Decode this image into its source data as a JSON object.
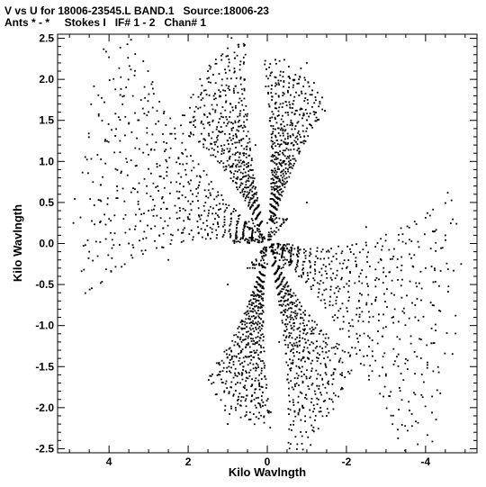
{
  "chart_data": {
    "type": "scatter",
    "title": "V vs U for 18006-23545.L BAND.1   Source:18006-23",
    "subtitle": "Ants * - *     Stokes I   IF# 1 - 2   Chan# 1",
    "xlabel": "Kilo Wavlngth",
    "ylabel": "Kilo Wavlngth",
    "xlim": [
      5.3,
      -5.3
    ],
    "ylim": [
      -2.55,
      2.55
    ],
    "x_ticks": [
      4,
      2,
      0,
      -2,
      -4
    ],
    "x_tick_labels": [
      "4",
      "2",
      "0",
      "-2",
      "-4"
    ],
    "y_ticks": [
      2.5,
      2.0,
      1.5,
      1.0,
      0.5,
      0.0,
      -0.5,
      -1.0,
      -1.5,
      -2.0,
      -2.5
    ],
    "y_tick_labels": [
      "2.5",
      "2.0",
      "1.5",
      "1.0",
      "0.5",
      "0.0",
      "-0.5",
      "-1.0",
      "-1.5",
      "-2.0",
      "-2.5"
    ],
    "grid": false,
    "marker_color": "#000000",
    "pattern": "six-armed snowflake of (u, v) points symmetric about the origin; arm axis angles 15, 55, 110, 195, 235, 290 degrees",
    "arms": [
      {
        "axis_angle_deg": 15,
        "radius_min": 0.4,
        "radius_max": 4.9
      },
      {
        "axis_angle_deg": 55,
        "radius_min": 0.3,
        "radius_max": 2.7
      },
      {
        "axis_angle_deg": 110,
        "radius_min": 0.3,
        "radius_max": 2.3
      },
      {
        "axis_angle_deg": 195,
        "radius_min": 0.4,
        "radius_max": 4.9
      },
      {
        "axis_angle_deg": 235,
        "radius_min": 0.3,
        "radius_max": 2.7
      },
      {
        "axis_angle_deg": 290,
        "radius_min": 0.3,
        "radius_max": 2.3
      }
    ],
    "series": [
      {
        "name": "",
        "points": [
          [
            0.3,
            0.3
          ],
          [
            0.5,
            0.2
          ],
          [
            -0.3,
            -0.3
          ],
          [
            -0.5,
            -0.2
          ],
          [
            0.5,
            -0.3
          ],
          [
            -0.5,
            0.3
          ],
          [
            0.0,
            0.25
          ],
          [
            0.0,
            -0.25
          ],
          [
            0.8,
            0.4
          ],
          [
            -0.8,
            -0.4
          ],
          [
            1.0,
            -0.5
          ],
          [
            -1.0,
            0.5
          ],
          [
            1.5,
            0.1
          ],
          [
            -1.5,
            -0.1
          ],
          [
            2.0,
            0.3
          ],
          [
            -2.0,
            -0.3
          ],
          [
            2.5,
            -0.2
          ],
          [
            -2.5,
            0.2
          ],
          [
            3.0,
            0.4
          ],
          [
            -3.0,
            -0.4
          ],
          [
            3.5,
            0.0
          ],
          [
            -3.5,
            0.0
          ],
          [
            4.0,
            0.3
          ],
          [
            -4.0,
            -0.3
          ],
          [
            4.5,
            -0.1
          ],
          [
            -4.5,
            0.1
          ],
          [
            4.9,
            0.25
          ],
          [
            -4.9,
            -0.25
          ],
          [
            0.6,
            1.0
          ],
          [
            -0.6,
            -1.0
          ],
          [
            0.9,
            1.4
          ],
          [
            -0.9,
            -1.4
          ],
          [
            1.2,
            1.8
          ],
          [
            -1.2,
            -1.8
          ],
          [
            1.5,
            2.1
          ],
          [
            -1.5,
            -2.1
          ],
          [
            0.3,
            1.2
          ],
          [
            -0.3,
            -1.2
          ],
          [
            1.1,
            1.1
          ],
          [
            -1.1,
            -1.1
          ],
          [
            -0.4,
            1.0
          ],
          [
            0.4,
            -1.0
          ],
          [
            -0.6,
            1.5
          ],
          [
            0.6,
            -1.5
          ],
          [
            -0.8,
            2.0
          ],
          [
            0.8,
            -2.0
          ],
          [
            -1.0,
            2.2
          ],
          [
            1.0,
            -2.2
          ],
          [
            -0.2,
            1.7
          ],
          [
            0.2,
            -1.7
          ],
          [
            -1.2,
            1.6
          ],
          [
            1.2,
            -1.6
          ]
        ]
      }
    ]
  }
}
